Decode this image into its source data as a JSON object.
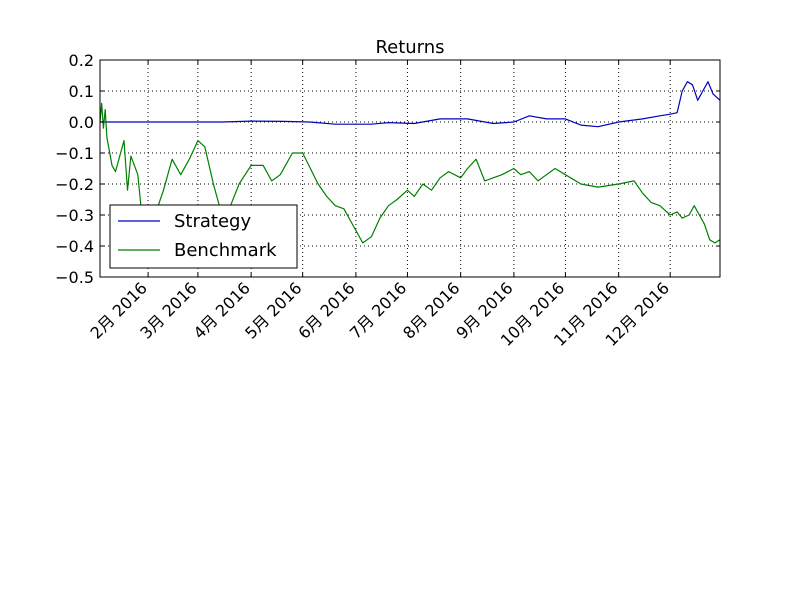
{
  "chart_data": {
    "type": "line",
    "title": "Returns",
    "xlabel": "",
    "ylabel": "",
    "x_range": [
      "2016-01-04",
      "2016-12-30"
    ],
    "ylim": [
      -0.5,
      0.2
    ],
    "y_ticks": [
      0.2,
      0.1,
      0.0,
      -0.1,
      -0.2,
      -0.3,
      -0.4,
      -0.5
    ],
    "y_tick_labels": [
      "0.2",
      "0.1",
      "0.0",
      "−0.1",
      "−0.2",
      "−0.3",
      "−0.4",
      "−0.5"
    ],
    "x_ticks": [
      {
        "date": "2016-02-01",
        "label": "2月 2016"
      },
      {
        "date": "2016-03-01",
        "label": "3月 2016"
      },
      {
        "date": "2016-04-01",
        "label": "4月 2016"
      },
      {
        "date": "2016-05-01",
        "label": "5月 2016"
      },
      {
        "date": "2016-06-01",
        "label": "6月 2016"
      },
      {
        "date": "2016-07-01",
        "label": "7月 2016"
      },
      {
        "date": "2016-08-01",
        "label": "8月 2016"
      },
      {
        "date": "2016-09-01",
        "label": "9月 2016"
      },
      {
        "date": "2016-10-01",
        "label": "10月 2016"
      },
      {
        "date": "2016-11-01",
        "label": "11月 2016"
      },
      {
        "date": "2016-12-01",
        "label": "12月 2016"
      }
    ],
    "grid": true,
    "legend_position": "lower-left",
    "series": [
      {
        "name": "Strategy",
        "color": "#0000bf",
        "points": [
          [
            "2016-01-04",
            0.0
          ],
          [
            "2016-02-01",
            0.0
          ],
          [
            "2016-03-01",
            0.0
          ],
          [
            "2016-03-15",
            0.0
          ],
          [
            "2016-04-01",
            0.003
          ],
          [
            "2016-04-20",
            0.002
          ],
          [
            "2016-05-05",
            0.0
          ],
          [
            "2016-05-20",
            -0.007
          ],
          [
            "2016-06-10",
            -0.007
          ],
          [
            "2016-06-20",
            -0.002
          ],
          [
            "2016-07-05",
            -0.005
          ],
          [
            "2016-07-20",
            0.01
          ],
          [
            "2016-08-05",
            0.01
          ],
          [
            "2016-08-20",
            -0.005
          ],
          [
            "2016-09-01",
            0.0
          ],
          [
            "2016-09-10",
            0.02
          ],
          [
            "2016-09-20",
            0.01
          ],
          [
            "2016-10-01",
            0.01
          ],
          [
            "2016-10-10",
            -0.01
          ],
          [
            "2016-10-20",
            -0.015
          ],
          [
            "2016-11-01",
            0.0
          ],
          [
            "2016-11-15",
            0.01
          ],
          [
            "2016-11-25",
            0.02
          ],
          [
            "2016-12-01",
            0.025
          ],
          [
            "2016-12-05",
            0.03
          ],
          [
            "2016-12-08",
            0.1
          ],
          [
            "2016-12-11",
            0.13
          ],
          [
            "2016-12-14",
            0.12
          ],
          [
            "2016-12-17",
            0.07
          ],
          [
            "2016-12-20",
            0.1
          ],
          [
            "2016-12-23",
            0.13
          ],
          [
            "2016-12-26",
            0.09
          ],
          [
            "2016-12-30",
            0.07
          ]
        ]
      },
      {
        "name": "Benchmark",
        "color": "#008000",
        "points": [
          [
            "2016-01-04",
            0.0
          ],
          [
            "2016-01-05",
            0.06
          ],
          [
            "2016-01-06",
            -0.02
          ],
          [
            "2016-01-07",
            0.04
          ],
          [
            "2016-01-08",
            -0.05
          ],
          [
            "2016-01-11",
            -0.14
          ],
          [
            "2016-01-13",
            -0.16
          ],
          [
            "2016-01-15",
            -0.12
          ],
          [
            "2016-01-18",
            -0.06
          ],
          [
            "2016-01-20",
            -0.22
          ],
          [
            "2016-01-22",
            -0.11
          ],
          [
            "2016-01-26",
            -0.17
          ],
          [
            "2016-01-28",
            -0.28
          ],
          [
            "2016-02-01",
            -0.34
          ],
          [
            "2016-02-05",
            -0.3
          ],
          [
            "2016-02-10",
            -0.22
          ],
          [
            "2016-02-15",
            -0.12
          ],
          [
            "2016-02-20",
            -0.17
          ],
          [
            "2016-02-25",
            -0.12
          ],
          [
            "2016-03-01",
            -0.06
          ],
          [
            "2016-03-05",
            -0.08
          ],
          [
            "2016-03-10",
            -0.2
          ],
          [
            "2016-03-15",
            -0.3
          ],
          [
            "2016-03-20",
            -0.27
          ],
          [
            "2016-03-25",
            -0.2
          ],
          [
            "2016-04-01",
            -0.14
          ],
          [
            "2016-04-08",
            -0.14
          ],
          [
            "2016-04-13",
            -0.19
          ],
          [
            "2016-04-18",
            -0.17
          ],
          [
            "2016-04-25",
            -0.1
          ],
          [
            "2016-05-01",
            -0.1
          ],
          [
            "2016-05-10",
            -0.2
          ],
          [
            "2016-05-15",
            -0.24
          ],
          [
            "2016-05-20",
            -0.27
          ],
          [
            "2016-05-25",
            -0.28
          ],
          [
            "2016-06-01",
            -0.35
          ],
          [
            "2016-06-05",
            -0.39
          ],
          [
            "2016-06-10",
            -0.37
          ],
          [
            "2016-06-15",
            -0.31
          ],
          [
            "2016-06-20",
            -0.27
          ],
          [
            "2016-06-25",
            -0.25
          ],
          [
            "2016-07-01",
            -0.22
          ],
          [
            "2016-07-05",
            -0.24
          ],
          [
            "2016-07-10",
            -0.2
          ],
          [
            "2016-07-15",
            -0.22
          ],
          [
            "2016-07-20",
            -0.18
          ],
          [
            "2016-07-25",
            -0.16
          ],
          [
            "2016-08-01",
            -0.18
          ],
          [
            "2016-08-05",
            -0.15
          ],
          [
            "2016-08-10",
            -0.12
          ],
          [
            "2016-08-15",
            -0.19
          ],
          [
            "2016-08-20",
            -0.18
          ],
          [
            "2016-08-25",
            -0.17
          ],
          [
            "2016-09-01",
            -0.15
          ],
          [
            "2016-09-05",
            -0.17
          ],
          [
            "2016-09-10",
            -0.16
          ],
          [
            "2016-09-15",
            -0.19
          ],
          [
            "2016-09-20",
            -0.17
          ],
          [
            "2016-09-25",
            -0.15
          ],
          [
            "2016-10-01",
            -0.17
          ],
          [
            "2016-10-10",
            -0.2
          ],
          [
            "2016-10-20",
            -0.21
          ],
          [
            "2016-11-01",
            -0.2
          ],
          [
            "2016-11-10",
            -0.19
          ],
          [
            "2016-11-15",
            -0.23
          ],
          [
            "2016-11-20",
            -0.26
          ],
          [
            "2016-11-25",
            -0.27
          ],
          [
            "2016-12-01",
            -0.3
          ],
          [
            "2016-12-05",
            -0.29
          ],
          [
            "2016-12-08",
            -0.31
          ],
          [
            "2016-12-12",
            -0.3
          ],
          [
            "2016-12-15",
            -0.27
          ],
          [
            "2016-12-18",
            -0.3
          ],
          [
            "2016-12-21",
            -0.33
          ],
          [
            "2016-12-24",
            -0.38
          ],
          [
            "2016-12-27",
            -0.39
          ],
          [
            "2016-12-30",
            -0.38
          ]
        ]
      }
    ]
  }
}
